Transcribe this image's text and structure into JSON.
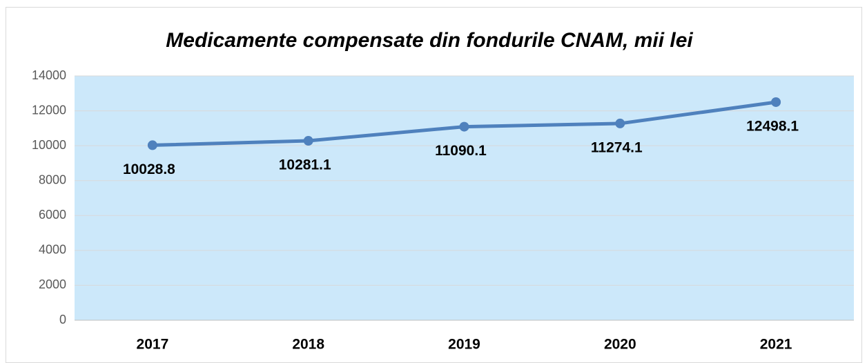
{
  "chart_data": {
    "type": "line",
    "title": "Medicamente compensate din fondurile CNAM, mii lei",
    "categories": [
      "2017",
      "2018",
      "2019",
      "2020",
      "2021"
    ],
    "values": [
      10028.8,
      10281.1,
      11090.1,
      11274.1,
      12498.1
    ],
    "color": "#4f81bd",
    "ylim": [
      0,
      14000
    ],
    "yticks": [
      0,
      2000,
      4000,
      6000,
      8000,
      10000,
      12000,
      14000
    ],
    "grid": true
  }
}
